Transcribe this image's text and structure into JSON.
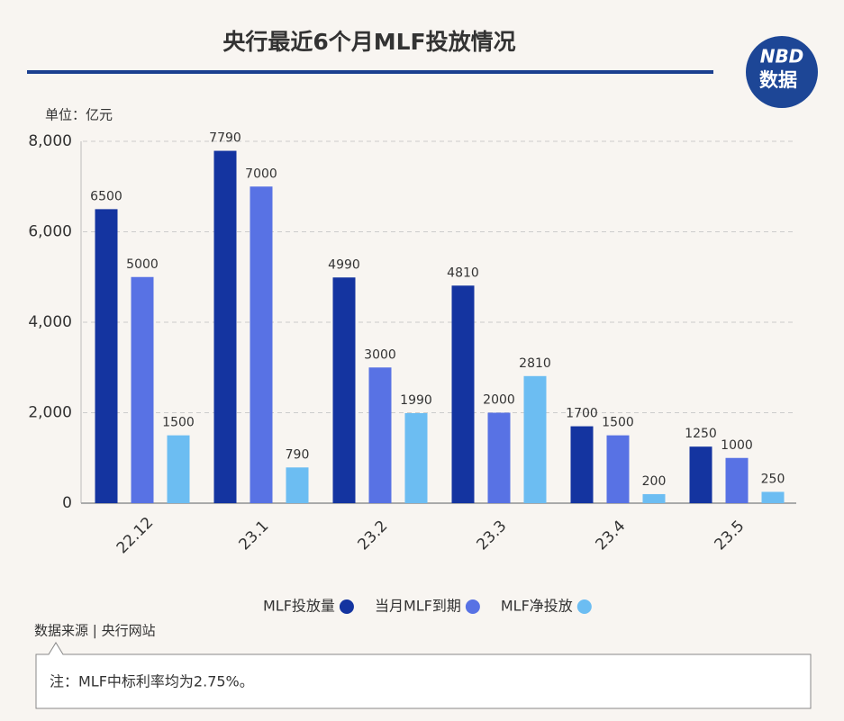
{
  "chart_data": {
    "type": "bar",
    "title": "央行最近6个月MLF投放情况",
    "unit": "单位：亿元",
    "logo_text": [
      "NBD",
      "数据"
    ],
    "categories": [
      "22.12",
      "23.1",
      "23.2",
      "23.3",
      "23.4",
      "23.5"
    ],
    "series": [
      {
        "name": "MLF投放量",
        "color": "#1434a0",
        "values": [
          6500,
          7790,
          4990,
          4810,
          1700,
          1250
        ]
      },
      {
        "name": "当月MLF到期",
        "color": "#5872e4",
        "values": [
          5000,
          7000,
          3000,
          2000,
          1500,
          1000
        ]
      },
      {
        "name": "MLF净投放",
        "color": "#6cbdf2",
        "values": [
          1500,
          790,
          1990,
          2810,
          200,
          250
        ]
      }
    ],
    "ylim": [
      0,
      8000
    ],
    "yticks": [
      0,
      {
        "value": 2000,
        "label": "2,000"
      },
      {
        "value": 4000,
        "label": "4,000"
      },
      {
        "value": 6000,
        "label": "6,000"
      },
      {
        "value": 8000,
        "label": "8,000"
      }
    ],
    "grid": true,
    "legend": "bottom",
    "source": "数据来源 | 央行网站",
    "note": "注：MLF中标利率均为2.75%。"
  }
}
